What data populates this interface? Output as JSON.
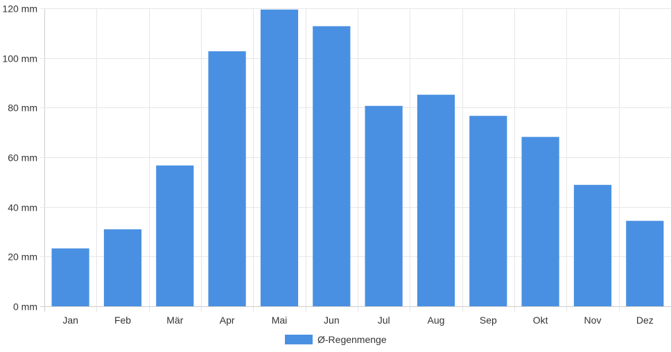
{
  "chart_data": {
    "type": "bar",
    "categories": [
      "Jan",
      "Feb",
      "Mär",
      "Apr",
      "Mai",
      "Jun",
      "Jul",
      "Aug",
      "Sep",
      "Okt",
      "Nov",
      "Dez"
    ],
    "series": [
      {
        "name": "Ø-Regenmenge",
        "values": [
          23.3,
          31,
          56.7,
          102.7,
          119.5,
          112.8,
          80.7,
          85.2,
          76.7,
          68.2,
          48.9,
          34.4
        ],
        "color": "#4a90e2"
      }
    ],
    "y_ticks": [
      0,
      20,
      40,
      60,
      80,
      100,
      120
    ],
    "y_unit": "mm",
    "ylim": [
      0,
      120
    ],
    "grid": true,
    "legend_position": "bottom"
  },
  "legend": {
    "label": "Ø-Regenmenge",
    "color": "#4a90e2"
  }
}
